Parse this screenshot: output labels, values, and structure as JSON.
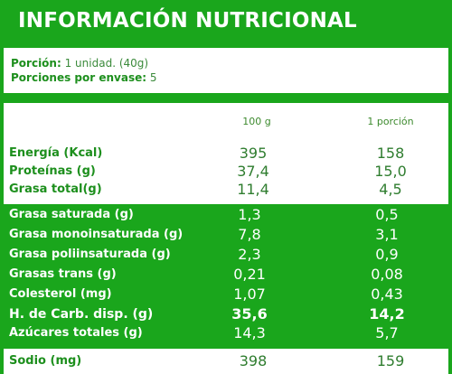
{
  "title": "INFORMACIÓN NUTRICIONAL",
  "portion": {
    "size_label": "Porción:",
    "size_value": "1 unidad. (40g)",
    "count_label": "Porciones por envase:",
    "count_value": "5"
  },
  "columns": [
    "100 g",
    "1 porción"
  ],
  "main_rows": [
    {
      "label": "Energía (Kcal)",
      "per100": "395",
      "perPortion": "158"
    },
    {
      "label": "Proteínas (g)",
      "per100": "37,4",
      "perPortion": "15,0"
    },
    {
      "label": "Grasa total(g)",
      "per100": "11,4",
      "perPortion": "4,5"
    }
  ],
  "detail_rows": [
    {
      "label": "Grasa saturada (g)",
      "per100": "1,3",
      "perPortion": "0,5"
    },
    {
      "label": "Grasa monoinsaturada (g)",
      "per100": "7,8",
      "perPortion": "3,1"
    },
    {
      "label": "Grasa poliinsaturada (g)",
      "per100": "2,3",
      "perPortion": "0,9"
    },
    {
      "label": "Grasas trans (g)",
      "per100": "0,21",
      "perPortion": "0,08"
    },
    {
      "label": "Colesterol (mg)",
      "per100": "1,07",
      "perPortion": "0,43"
    },
    {
      "label": "H. de Carb. disp. (g)",
      "per100": "35,6",
      "perPortion": "14,2"
    },
    {
      "label": "Azúcares totales (g)",
      "per100": "14,3",
      "perPortion": "5,7"
    }
  ],
  "sodium_row": {
    "label": "Sodio (mg)",
    "per100": "398",
    "perPortion": "159"
  },
  "colors": {
    "green": "#1aa61c",
    "white": "#ffffff",
    "text_green": "#1d8f1d"
  }
}
